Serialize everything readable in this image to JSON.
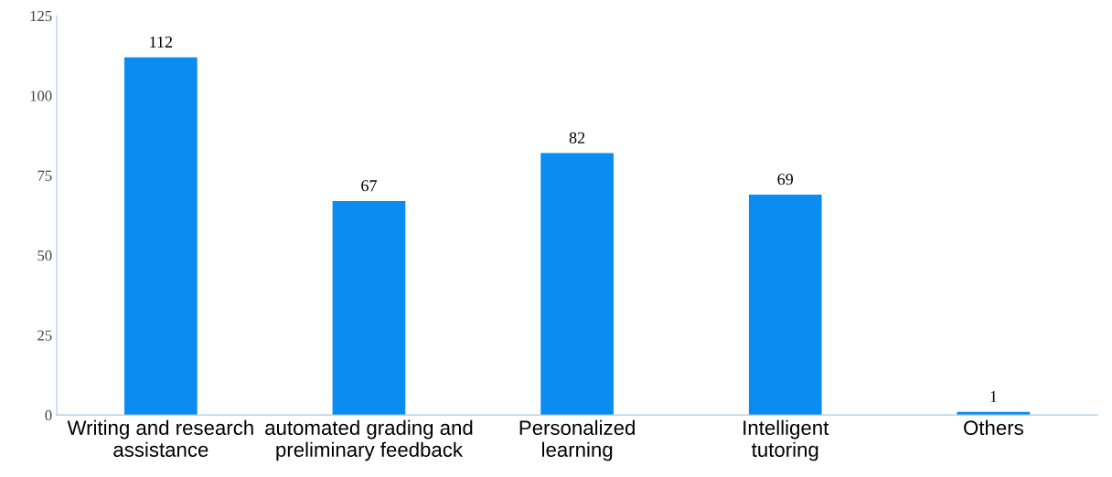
{
  "chart_data": {
    "type": "bar",
    "categories": [
      "Writing and research\nassistance",
      "automated grading and\npreliminary feedback",
      "Personalized\nlearning",
      "Intelligent\ntutoring",
      "Others"
    ],
    "values": [
      112,
      67,
      82,
      69,
      1
    ],
    "color": "#0a8cf0",
    "ylim": [
      0,
      125
    ],
    "yticks": [
      0,
      25,
      50,
      75,
      100,
      125
    ],
    "data_labels": true,
    "grid": false,
    "legend": false
  }
}
